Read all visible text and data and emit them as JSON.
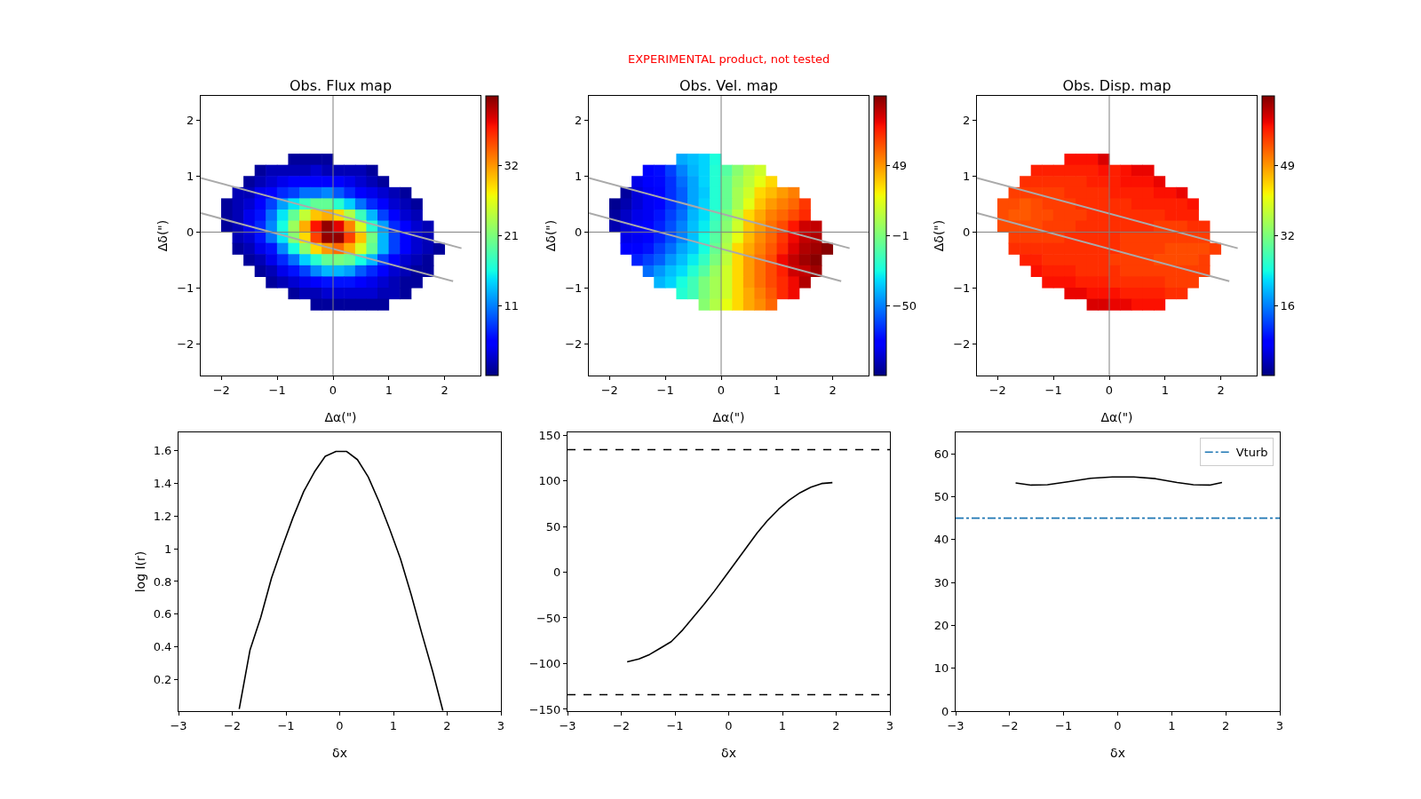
{
  "chart_data": [
    {
      "type": "heatmap",
      "title": "Obs. Flux map",
      "xlabel": "Δα(\")",
      "ylabel": "Δδ(\")",
      "x": [
        -1.9,
        -1.7,
        -1.5,
        -1.3,
        -1.1,
        -0.9,
        -0.7,
        -0.5,
        -0.3,
        -0.1,
        0.1,
        0.3,
        0.5,
        0.7,
        0.9,
        1.1,
        1.3,
        1.5,
        1.7,
        1.9
      ],
      "y": [
        1.3,
        1.1,
        0.9,
        0.7,
        0.5,
        0.3,
        0.1,
        -0.1,
        -0.3,
        -0.5,
        -0.7,
        -0.9,
        -1.1,
        -1.3
      ],
      "cells": [
        [
          null,
          null,
          null,
          null,
          null,
          null,
          1,
          1,
          1,
          1,
          null,
          null,
          null,
          null,
          null,
          null,
          null,
          null,
          null,
          null
        ],
        [
          null,
          null,
          null,
          1,
          2,
          2,
          2,
          2,
          3,
          2,
          2,
          2,
          2,
          1,
          null,
          null,
          null,
          null,
          null,
          null
        ],
        [
          null,
          null,
          1,
          2,
          3,
          4,
          5,
          5,
          5,
          5,
          5,
          4,
          3,
          2,
          1,
          null,
          null,
          null,
          null,
          null
        ],
        [
          null,
          2,
          2,
          4,
          5,
          7,
          8,
          10,
          10,
          11,
          9,
          7,
          5,
          4,
          3,
          2,
          1,
          null,
          null,
          null
        ],
        [
          1,
          2,
          3,
          5,
          8,
          12,
          15,
          18,
          20,
          20,
          17,
          14,
          10,
          7,
          5,
          3,
          2,
          1,
          null,
          null
        ],
        [
          1,
          2,
          4,
          6,
          10,
          15,
          20,
          25,
          30,
          31,
          29,
          24,
          18,
          13,
          8,
          5,
          3,
          2,
          null,
          null
        ],
        [
          1,
          2,
          4,
          7,
          11,
          16,
          23,
          31,
          38,
          42,
          39,
          33,
          26,
          17,
          12,
          7,
          5,
          3,
          2,
          null
        ],
        [
          null,
          2,
          3,
          6,
          10,
          15,
          22,
          29,
          36,
          42,
          42,
          36,
          30,
          21,
          13,
          8,
          5,
          3,
          2,
          null
        ],
        [
          null,
          1,
          2,
          4,
          6,
          11,
          16,
          22,
          29,
          32,
          34,
          31,
          26,
          20,
          13,
          8,
          5,
          3,
          2,
          1
        ],
        [
          null,
          null,
          1,
          2,
          4,
          7,
          10,
          14,
          17,
          20,
          21,
          20,
          16,
          13,
          8,
          5,
          3,
          2,
          1,
          null
        ],
        [
          null,
          null,
          null,
          1,
          2,
          4,
          6,
          8,
          11,
          13,
          13,
          12,
          9,
          7,
          5,
          3,
          2,
          1,
          1,
          null
        ],
        [
          null,
          null,
          null,
          null,
          1,
          2,
          3,
          4,
          5,
          6,
          6,
          6,
          5,
          4,
          3,
          2,
          1,
          1,
          null,
          null
        ],
        [
          null,
          null,
          null,
          null,
          null,
          null,
          1,
          2,
          2,
          3,
          3,
          3,
          3,
          3,
          2,
          2,
          1,
          null,
          null,
          null
        ],
        [
          null,
          null,
          null,
          null,
          null,
          null,
          null,
          null,
          1,
          1,
          1,
          1,
          1,
          1,
          1,
          null,
          null,
          null,
          null,
          null
        ]
      ],
      "clim": [
        0,
        42.7
      ],
      "cticks": [
        {
          "value": 10.7,
          "label": "11"
        },
        {
          "value": 21.3,
          "label": "21"
        },
        {
          "value": 32,
          "label": "32"
        }
      ],
      "xlim": [
        -2.37,
        2.64
      ],
      "ylim": [
        -2.57,
        2.44
      ],
      "xticks": [
        -2,
        -1,
        0,
        1,
        2
      ],
      "yticks": [
        -2,
        -1,
        0,
        1,
        2
      ],
      "series": [
        {
          "type": "line",
          "color": "#aaaaaa",
          "x": [
            -2.37,
            2.3
          ],
          "values": [
            0.97,
            -0.29
          ]
        },
        {
          "type": "line",
          "color": "#aaaaaa",
          "x": [
            -2.37,
            2.15
          ],
          "values": [
            0.34,
            -0.88
          ]
        }
      ],
      "ref_lines": [
        {
          "axis": "x",
          "value": 0,
          "color": "#808080"
        },
        {
          "axis": "y",
          "value": 0,
          "color": "#808080"
        }
      ]
    },
    {
      "type": "heatmap",
      "title": "Obs. Vel. map",
      "xlabel": "Δα(\")",
      "ylabel": "Δδ(\")",
      "annotations": [
        "EXPERIMENTAL product, not tested"
      ],
      "x": [
        -1.9,
        -1.7,
        -1.5,
        -1.3,
        -1.1,
        -0.9,
        -0.7,
        -0.5,
        -0.3,
        -0.1,
        0.1,
        0.3,
        0.5,
        0.7,
        0.9,
        1.1,
        1.3,
        1.5,
        1.7,
        1.9
      ],
      "y": [
        1.3,
        1.1,
        0.9,
        0.7,
        0.5,
        0.3,
        0.1,
        -0.1,
        -0.3,
        -0.5,
        -0.7,
        -0.9,
        -1.1,
        -1.3
      ],
      "cells": [
        [
          null,
          null,
          null,
          null,
          null,
          null,
          -42,
          -38,
          -34,
          -24,
          null,
          null,
          null,
          null,
          null,
          null,
          null,
          null,
          null,
          null
        ],
        [
          null,
          null,
          null,
          -75,
          -73,
          -63,
          -50,
          -40,
          -34,
          -22,
          -10,
          2,
          12,
          19,
          null,
          null,
          null,
          null,
          null,
          null
        ],
        [
          null,
          null,
          -82,
          -78,
          -74,
          -66,
          -54,
          -43,
          -34,
          -22,
          -6,
          6,
          15,
          25,
          35,
          null,
          null,
          null,
          null,
          null
        ],
        [
          null,
          -95,
          -85,
          -80,
          -75,
          -66,
          -57,
          -43,
          -36,
          -22,
          -6,
          9,
          19,
          35,
          41,
          48,
          54,
          null,
          null,
          null
        ],
        [
          -97,
          -92,
          -85,
          -80,
          -75,
          -66,
          -57,
          -43,
          -34,
          -22,
          -6,
          9,
          24,
          39,
          48,
          54,
          59,
          69,
          null,
          null
        ],
        [
          -95,
          -88,
          -82,
          -80,
          -72,
          -63,
          -54,
          -40,
          -32,
          -18,
          -1,
          15,
          35,
          45,
          54,
          59,
          65,
          72,
          null,
          null
        ],
        [
          -92,
          -85,
          -80,
          -75,
          -69,
          -60,
          -50,
          -38,
          -29,
          -15,
          2,
          19,
          39,
          48,
          57,
          65,
          76,
          85,
          87,
          null
        ],
        [
          null,
          -82,
          -80,
          -75,
          -69,
          -60,
          -50,
          -38,
          -25,
          -10,
          9,
          25,
          41,
          51,
          59,
          69,
          79,
          87,
          90,
          null
        ],
        [
          null,
          -78,
          -75,
          -72,
          -63,
          -54,
          -43,
          -36,
          -25,
          -6,
          12,
          35,
          45,
          54,
          62,
          72,
          82,
          90,
          93,
          97
        ],
        [
          null,
          null,
          -69,
          -63,
          -57,
          -46,
          -38,
          -29,
          -18,
          -1,
          15,
          35,
          48,
          57,
          65,
          79,
          87,
          93,
          97,
          null
        ],
        [
          null,
          null,
          null,
          -54,
          -46,
          -38,
          -32,
          -22,
          -10,
          6,
          19,
          35,
          48,
          57,
          65,
          74,
          85,
          87,
          93,
          null
        ],
        [
          null,
          null,
          null,
          null,
          -40,
          -34,
          -25,
          -15,
          -1,
          9,
          19,
          35,
          48,
          57,
          65,
          72,
          79,
          90,
          null,
          null
        ],
        [
          null,
          null,
          null,
          null,
          null,
          null,
          -22,
          -15,
          -1,
          9,
          19,
          35,
          45,
          54,
          62,
          72,
          79,
          null,
          null,
          null
        ],
        [
          null,
          null,
          null,
          null,
          null,
          null,
          null,
          null,
          2,
          12,
          25,
          35,
          45,
          51,
          59,
          null,
          null,
          null,
          null,
          null
        ]
      ],
      "clim": [
        -100,
        98.4
      ],
      "cticks": [
        {
          "value": -50.4,
          "label": "−50"
        },
        {
          "value": -0.8,
          "label": "−1"
        },
        {
          "value": 48.8,
          "label": "49"
        }
      ],
      "xlim": [
        -2.37,
        2.64
      ],
      "ylim": [
        -2.57,
        2.44
      ],
      "xticks": [
        -2,
        -1,
        0,
        1,
        2
      ],
      "yticks": [
        -2,
        -1,
        0,
        1,
        2
      ],
      "series": [
        {
          "type": "line",
          "color": "#aaaaaa",
          "x": [
            -2.37,
            2.3
          ],
          "values": [
            0.97,
            -0.29
          ]
        },
        {
          "type": "line",
          "color": "#aaaaaa",
          "x": [
            -2.37,
            2.15
          ],
          "values": [
            0.34,
            -0.88
          ]
        }
      ],
      "ref_lines": [
        {
          "axis": "x",
          "value": 0,
          "color": "#808080"
        },
        {
          "axis": "y",
          "value": 0,
          "color": "#808080"
        }
      ]
    },
    {
      "type": "heatmap",
      "title": "Obs. Disp. map",
      "xlabel": "Δα(\")",
      "ylabel": "Δδ(\")",
      "x": [
        -1.9,
        -1.7,
        -1.5,
        -1.3,
        -1.1,
        -0.9,
        -0.7,
        -0.5,
        -0.3,
        -0.1,
        0.1,
        0.3,
        0.5,
        0.7,
        0.9,
        1.1,
        1.3,
        1.5,
        1.7,
        1.9
      ],
      "y": [
        1.3,
        1.1,
        0.9,
        0.7,
        0.5,
        0.3,
        0.1,
        -0.1,
        -0.3,
        -0.5,
        -0.7,
        -0.9,
        -1.1,
        -1.3
      ],
      "cells": [
        [
          null,
          null,
          null,
          null,
          null,
          null,
          58,
          58,
          58,
          60,
          null,
          null,
          null,
          null,
          null,
          null,
          null,
          null,
          null,
          null
        ],
        [
          null,
          null,
          null,
          57,
          57,
          57,
          57,
          57,
          57,
          58,
          57,
          58,
          59,
          59,
          null,
          null,
          null,
          null,
          null,
          null
        ],
        [
          null,
          null,
          56,
          56,
          56,
          56,
          56,
          56,
          57,
          57,
          57,
          58,
          58,
          58,
          59,
          null,
          null,
          null,
          null,
          null
        ],
        [
          null,
          55,
          55,
          55,
          55,
          55,
          56,
          56,
          56,
          56,
          57,
          57,
          57,
          57,
          58,
          58,
          59,
          null,
          null,
          null
        ],
        [
          54,
          54,
          53,
          54,
          55,
          55,
          55,
          56,
          56,
          56,
          56,
          56,
          57,
          57,
          57,
          57,
          57,
          58,
          null,
          null
        ],
        [
          54,
          53,
          53,
          54,
          54,
          55,
          55,
          55,
          56,
          56,
          56,
          56,
          56,
          56,
          56,
          57,
          57,
          57,
          null,
          null
        ],
        [
          54,
          54,
          54,
          54,
          55,
          55,
          55,
          56,
          56,
          56,
          56,
          56,
          56,
          56,
          55,
          55,
          55,
          56,
          56,
          null
        ],
        [
          null,
          55,
          55,
          55,
          55,
          55,
          56,
          56,
          56,
          56,
          56,
          55,
          55,
          55,
          55,
          55,
          55,
          55,
          55,
          null
        ],
        [
          null,
          56,
          56,
          56,
          56,
          56,
          56,
          56,
          56,
          56,
          56,
          55,
          55,
          55,
          55,
          54,
          54,
          54,
          54,
          55
        ],
        [
          null,
          null,
          57,
          57,
          56,
          56,
          56,
          56,
          56,
          56,
          55,
          55,
          55,
          55,
          54,
          54,
          54,
          54,
          55,
          null
        ],
        [
          null,
          null,
          null,
          58,
          57,
          57,
          57,
          56,
          56,
          56,
          56,
          55,
          55,
          55,
          55,
          55,
          55,
          55,
          55,
          null
        ],
        [
          null,
          null,
          null,
          null,
          58,
          58,
          58,
          57,
          57,
          57,
          56,
          56,
          56,
          56,
          56,
          55,
          55,
          55,
          null,
          null
        ],
        [
          null,
          null,
          null,
          null,
          null,
          null,
          59,
          59,
          58,
          58,
          58,
          57,
          57,
          57,
          57,
          56,
          56,
          null,
          null,
          null
        ],
        [
          null,
          null,
          null,
          null,
          null,
          null,
          null,
          null,
          60,
          60,
          59,
          59,
          58,
          58,
          58,
          null,
          null,
          null,
          null,
          null
        ]
      ],
      "clim": [
        0,
        65
      ],
      "cticks": [
        {
          "value": 16.25,
          "label": "16"
        },
        {
          "value": 32.5,
          "label": "32"
        },
        {
          "value": 48.75,
          "label": "49"
        }
      ],
      "xlim": [
        -2.37,
        2.64
      ],
      "ylim": [
        -2.57,
        2.44
      ],
      "xticks": [
        -2,
        -1,
        0,
        1,
        2
      ],
      "yticks": [
        -2,
        -1,
        0,
        1,
        2
      ],
      "series": [
        {
          "type": "line",
          "color": "#aaaaaa",
          "x": [
            -2.37,
            2.3
          ],
          "values": [
            0.97,
            -0.29
          ]
        },
        {
          "type": "line",
          "color": "#aaaaaa",
          "x": [
            -2.37,
            2.15
          ],
          "values": [
            0.34,
            -0.88
          ]
        }
      ],
      "ref_lines": [
        {
          "axis": "x",
          "value": 0,
          "color": "#808080"
        },
        {
          "axis": "y",
          "value": 0,
          "color": "#808080"
        }
      ]
    },
    {
      "type": "line",
      "xlabel": "δx",
      "ylabel": "log I(r)",
      "xlim": [
        -3,
        3
      ],
      "xticks": [
        -3,
        -2,
        -1,
        0,
        1,
        2,
        3
      ],
      "ylim": [
        0.007,
        1.712
      ],
      "yticks": [
        0.2,
        0.4,
        0.6,
        0.8,
        1.0,
        1.2,
        1.4,
        1.6
      ],
      "series": [
        {
          "color": "#000000",
          "x": [
            -1.87,
            -1.67,
            -1.47,
            -1.27,
            -1.07,
            -0.87,
            -0.67,
            -0.47,
            -0.27,
            -0.07,
            0.13,
            0.33,
            0.53,
            0.73,
            0.93,
            1.13,
            1.33,
            1.53,
            1.73,
            1.92
          ],
          "values": [
            0.02,
            0.38,
            0.58,
            0.82,
            1.01,
            1.19,
            1.35,
            1.47,
            1.565,
            1.595,
            1.595,
            1.545,
            1.44,
            1.29,
            1.12,
            0.94,
            0.72,
            0.48,
            0.25,
            0.01
          ]
        }
      ]
    },
    {
      "type": "line",
      "xlabel": "δx",
      "xlim": [
        -3,
        3
      ],
      "xticks": [
        -3,
        -2,
        -1,
        0,
        1,
        2,
        3
      ],
      "ylim": [
        -152,
        153
      ],
      "yticks": [
        -150,
        -100,
        -50,
        0,
        50,
        100,
        150
      ],
      "series": [
        {
          "color": "#000000",
          "x": [
            -1.89,
            -1.67,
            -1.47,
            -1.27,
            -1.07,
            -0.87,
            -0.67,
            -0.47,
            -0.27,
            -0.07,
            0.13,
            0.33,
            0.53,
            0.73,
            0.93,
            1.13,
            1.33,
            1.53,
            1.73,
            1.93
          ],
          "values": [
            -98,
            -95,
            -90,
            -83,
            -76,
            -64,
            -50,
            -36,
            -21,
            -5,
            11,
            27,
            43,
            57,
            69,
            79,
            87,
            93,
            97,
            98
          ]
        }
      ],
      "ref_lines": [
        {
          "axis": "y",
          "value": 134,
          "color": "#000000",
          "line_style": "dashed"
        },
        {
          "axis": "y",
          "value": -134,
          "color": "#000000",
          "line_style": "dashed"
        }
      ]
    },
    {
      "type": "line",
      "xlabel": "δx",
      "legend": "top right",
      "xlim": [
        -3,
        3
      ],
      "xticks": [
        -3,
        -2,
        -1,
        0,
        1,
        2,
        3
      ],
      "ylim": [
        0,
        65
      ],
      "yticks": [
        0,
        10,
        20,
        30,
        40,
        50,
        60
      ],
      "series": [
        {
          "color": "#000000",
          "x": [
            -1.89,
            -1.6,
            -1.3,
            -0.9,
            -0.5,
            -0.1,
            0.3,
            0.7,
            1.1,
            1.4,
            1.7,
            1.93
          ],
          "values": [
            53.2,
            52.7,
            52.8,
            53.5,
            54.3,
            54.6,
            54.6,
            54.2,
            53.3,
            52.8,
            52.7,
            53.3
          ]
        },
        {
          "name": "Vturb",
          "color": "#1f77b4",
          "line_style": "dashdot",
          "x": [
            -3,
            3
          ],
          "values": [
            45,
            45
          ]
        }
      ]
    }
  ]
}
